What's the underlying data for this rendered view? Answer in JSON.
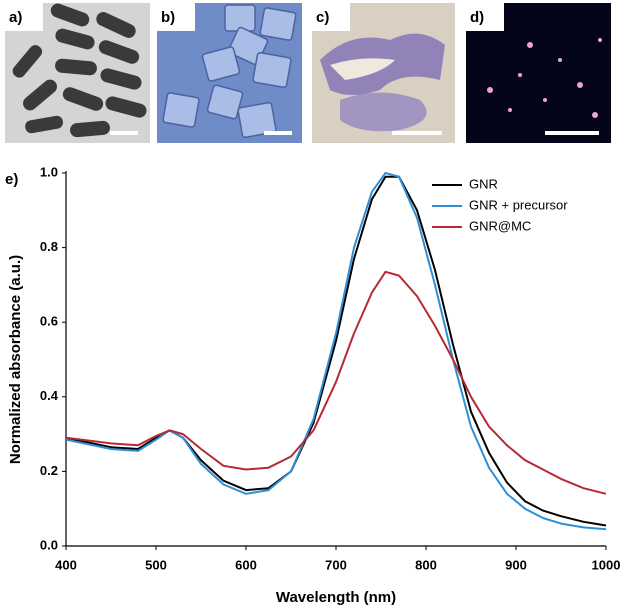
{
  "figure": {
    "panels": [
      "a)",
      "b)",
      "c)",
      "d)"
    ]
  },
  "chart_data": {
    "type": "line",
    "panel_label": "e)",
    "x_label": "Wavelength (nm)",
    "y_label": "Normalized absorbance (a.u.)",
    "x": [
      400,
      450,
      480,
      500,
      515,
      530,
      550,
      575,
      600,
      625,
      650,
      675,
      700,
      720,
      740,
      755,
      770,
      790,
      810,
      830,
      850,
      870,
      890,
      910,
      930,
      950,
      975,
      1000
    ],
    "series": [
      {
        "name": "GNR",
        "color": "#000000",
        "values": [
          0.29,
          0.265,
          0.26,
          0.29,
          0.31,
          0.29,
          0.23,
          0.175,
          0.15,
          0.155,
          0.2,
          0.33,
          0.55,
          0.77,
          0.93,
          0.99,
          0.99,
          0.9,
          0.74,
          0.54,
          0.36,
          0.25,
          0.17,
          0.12,
          0.095,
          0.08,
          0.065,
          0.055
        ]
      },
      {
        "name": "GNR + precursor",
        "color": "#2f8fd6",
        "values": [
          0.285,
          0.26,
          0.255,
          0.285,
          0.31,
          0.29,
          0.22,
          0.165,
          0.14,
          0.15,
          0.2,
          0.34,
          0.57,
          0.8,
          0.95,
          1.0,
          0.99,
          0.88,
          0.7,
          0.5,
          0.32,
          0.21,
          0.14,
          0.1,
          0.075,
          0.06,
          0.05,
          0.045
        ]
      },
      {
        "name": "GNR@MC",
        "color": "#b52a35",
        "values": [
          0.29,
          0.275,
          0.27,
          0.295,
          0.31,
          0.3,
          0.26,
          0.215,
          0.205,
          0.21,
          0.24,
          0.31,
          0.44,
          0.57,
          0.68,
          0.735,
          0.725,
          0.67,
          0.59,
          0.5,
          0.4,
          0.32,
          0.27,
          0.23,
          0.205,
          0.18,
          0.155,
          0.14
        ]
      }
    ],
    "xlim": [
      400,
      1000
    ],
    "xticks": [
      400,
      500,
      600,
      700,
      800,
      900,
      1000
    ],
    "ylim": [
      0,
      1
    ],
    "yticks": [
      {
        "value": 0,
        "label": "0.0"
      },
      0.2,
      0.4,
      0.6,
      0.8,
      {
        "value": 1,
        "label": "1.0"
      }
    ],
    "grid": false,
    "legend": "upper right"
  }
}
